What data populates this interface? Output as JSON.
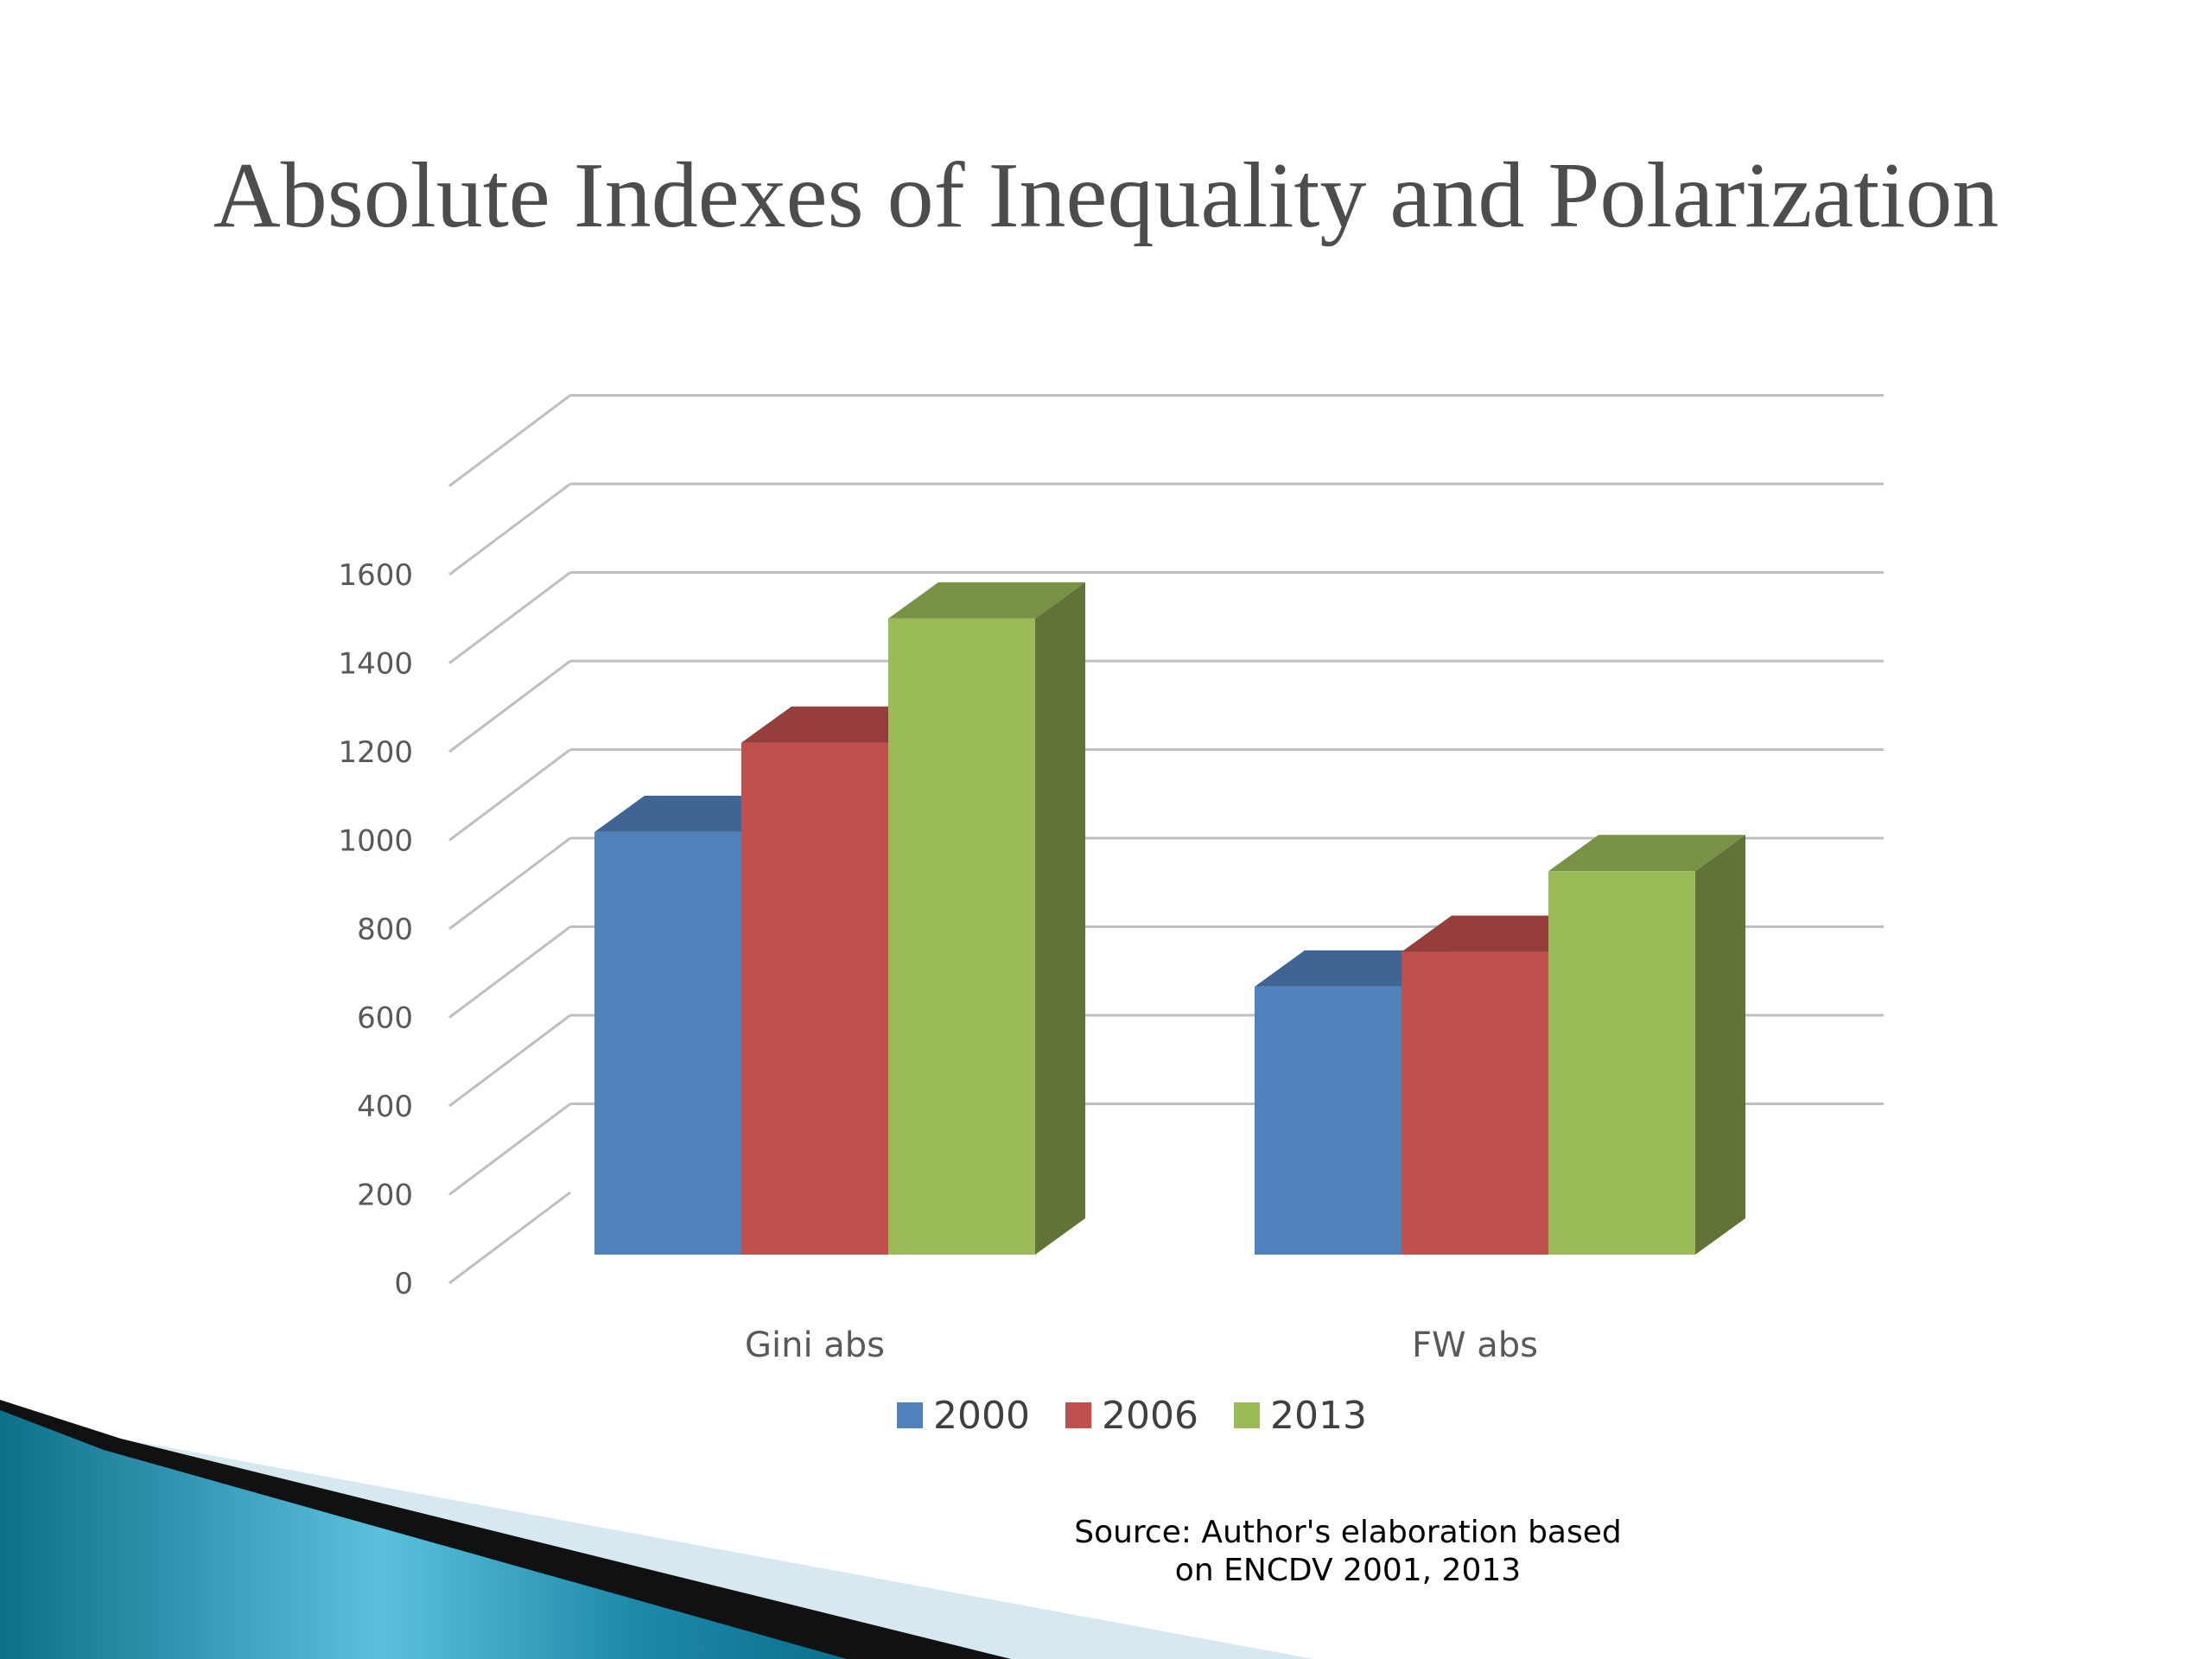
{
  "slide": {
    "title": "Absolute Indexes of Inequality and Polarization",
    "source_line1": "Source: Author's elaboration based",
    "source_line2": "on ENCDV 2001, 2013"
  },
  "chart_data": {
    "type": "bar",
    "style": "3d-clustered-column",
    "categories": [
      "Gini abs",
      "FW abs"
    ],
    "series": [
      {
        "name": "2000",
        "values": [
          970,
          615
        ],
        "color": "#4f81bd"
      },
      {
        "name": "2006",
        "values": [
          1175,
          695
        ],
        "color": "#c0504d"
      },
      {
        "name": "2013",
        "values": [
          1460,
          880
        ],
        "color": "#9bbb59"
      }
    ],
    "y_ticks": [
      "0",
      "200",
      "400",
      "600",
      "800",
      "1000",
      "1200",
      "1400",
      "1600"
    ],
    "ylim": [
      0,
      1800
    ],
    "grid": true,
    "legend": "bottom",
    "title": "",
    "xlabel": "",
    "ylabel": ""
  },
  "colors": {
    "title": "#4d4d4d",
    "grid": "#bfbfbf",
    "axis_text": "#595959"
  }
}
